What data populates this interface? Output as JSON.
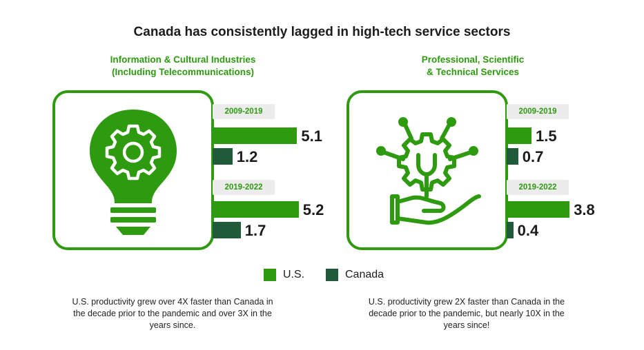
{
  "title": "Canada has consistently lagged in high-tech service sectors",
  "colors": {
    "us": "#2e9a10",
    "canada": "#1f5a3b",
    "accent": "#2e9a10"
  },
  "legend": [
    {
      "label": "U.S.",
      "color": "#2e9a10"
    },
    {
      "label": "Canada",
      "color": "#1f5a3b"
    }
  ],
  "panels": [
    {
      "title_lines": [
        "Information & Cultural Industries",
        "(Including Telecommunications)"
      ],
      "icon": "lightbulb-gear-icon",
      "caption_lines": [
        "U.S. productivity grew over 4X faster than Canada in",
        "the decade prior to the pandemic and over 3X in the",
        "years since."
      ]
    },
    {
      "title_lines": [
        "Professional, Scientific",
        "& Technical Services"
      ],
      "icon": "hand-gear-wrench-icon",
      "caption_lines": [
        "U.S. productivity grew 2X faster than Canada in the",
        "decade prior to the pandemic, but nearly 10X in the",
        "years since!"
      ]
    }
  ],
  "chart_data": [
    {
      "type": "bar",
      "title": "Information & Cultural Industries (Including Telecommunications)",
      "categories": [
        "2009-2019",
        "2019-2022"
      ],
      "series": [
        {
          "name": "U.S.",
          "values": [
            5.1,
            5.2
          ]
        },
        {
          "name": "Canada",
          "values": [
            1.2,
            1.7
          ]
        }
      ]
    },
    {
      "type": "bar",
      "title": "Professional, Scientific & Technical Services",
      "categories": [
        "2009-2019",
        "2019-2022"
      ],
      "series": [
        {
          "name": "U.S.",
          "values": [
            1.5,
            3.8
          ]
        },
        {
          "name": "Canada",
          "values": [
            0.7,
            0.4
          ]
        }
      ]
    }
  ]
}
